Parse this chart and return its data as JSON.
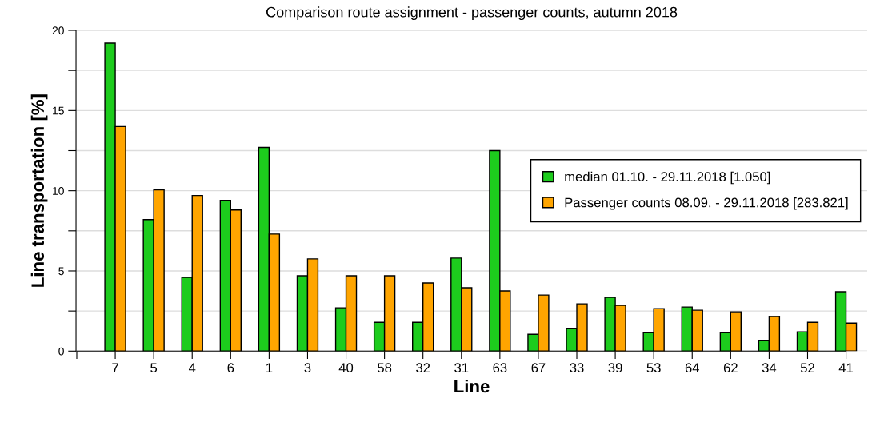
{
  "chart_data": {
    "type": "bar",
    "title": "Comparison route assignment - passenger counts, autumn 2018",
    "xlabel": "Line",
    "ylabel": "Line transportation [%]",
    "categories": [
      null,
      "7",
      "5",
      "4",
      "6",
      "1",
      "3",
      "40",
      "58",
      "32",
      "31",
      "63",
      "67",
      "33",
      "39",
      "53",
      "64",
      "62",
      "34",
      "52",
      "41"
    ],
    "series": [
      {
        "name": "median 01.10. - 29.11.2018 [1.050]",
        "color": "#1dcc1d",
        "values": [
          null,
          19.2,
          8.2,
          4.6,
          9.4,
          12.7,
          4.7,
          2.7,
          1.8,
          1.8,
          5.8,
          12.5,
          1.05,
          1.4,
          3.35,
          1.15,
          2.75,
          1.15,
          0.65,
          1.2,
          3.7
        ]
      },
      {
        "name": "Passenger counts 08.09. - 29.11.2018 [283.821]",
        "color": "#ffa500",
        "values": [
          null,
          14.0,
          10.05,
          9.7,
          8.8,
          7.3,
          5.75,
          4.7,
          4.7,
          4.25,
          3.95,
          3.75,
          3.5,
          2.95,
          2.85,
          2.65,
          2.55,
          2.45,
          2.15,
          1.8,
          1.75
        ]
      }
    ],
    "ylim": [
      0,
      20
    ],
    "yticks": [
      0,
      {
        "value": 2.5,
        "label": null
      },
      5,
      {
        "value": 7.5,
        "label": null
      },
      10,
      {
        "value": 12.5,
        "label": null
      },
      15,
      {
        "value": 17.5,
        "label": null
      },
      20
    ],
    "grid": "y",
    "legend": "center right"
  }
}
